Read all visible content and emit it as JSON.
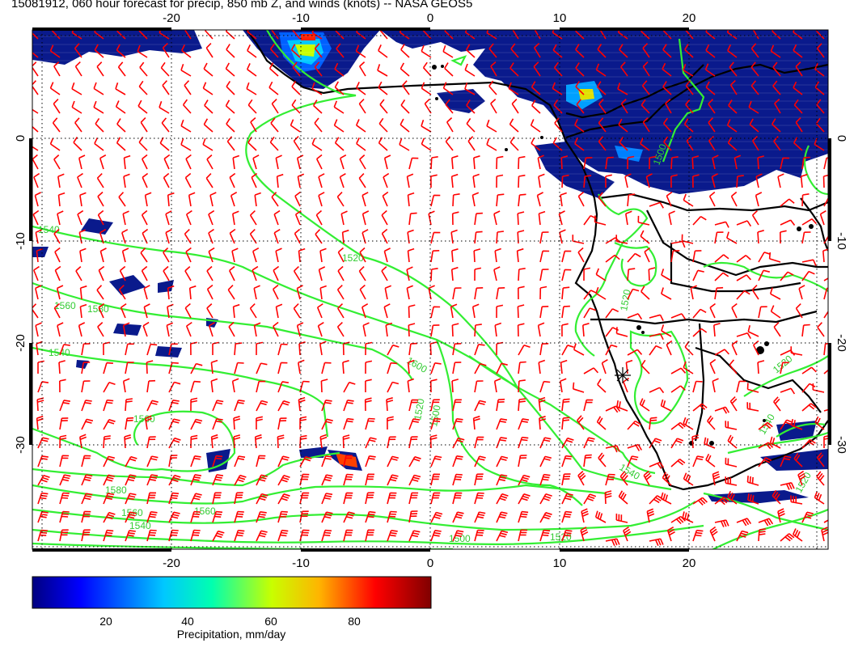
{
  "title": "15081912, 060 hour forecast for precip, 850 mb Z, and winds (knots) -- NASA GEOS5",
  "map": {
    "lon_range": [
      -31,
      31
    ],
    "lat_range": [
      -41,
      9.5
    ],
    "lon_ticks": [
      "-20",
      "-10",
      "0",
      "10",
      "20"
    ],
    "lat_ticks": [
      "0",
      "-10",
      "-20",
      "-30"
    ],
    "graticule": "dotted every 10 degrees",
    "colors": {
      "wind_barbs": "#ff0000",
      "height_contours": "#33ee33",
      "coastlines": "#000000",
      "precip_low": "#0a1a8c"
    },
    "contour_labels": [
      "1540",
      "1520",
      "1560",
      "1580",
      "1540",
      "1600",
      "1560",
      "1580",
      "1560",
      "1540",
      "1520",
      "1520",
      "1540",
      "1560",
      "1500",
      "1500",
      "1520",
      "1500",
      "1520",
      "1540",
      "1520"
    ],
    "marker": "star-marker"
  },
  "colorbar": {
    "label": "Precipitation, mm/day",
    "ticks": [
      "20",
      "40",
      "60",
      "80"
    ],
    "range": [
      0,
      98
    ],
    "colors": [
      "#000080",
      "#0000ff",
      "#00c8ff",
      "#00ffb0",
      "#c8ff00",
      "#ffb400",
      "#ff0000",
      "#800000"
    ]
  }
}
